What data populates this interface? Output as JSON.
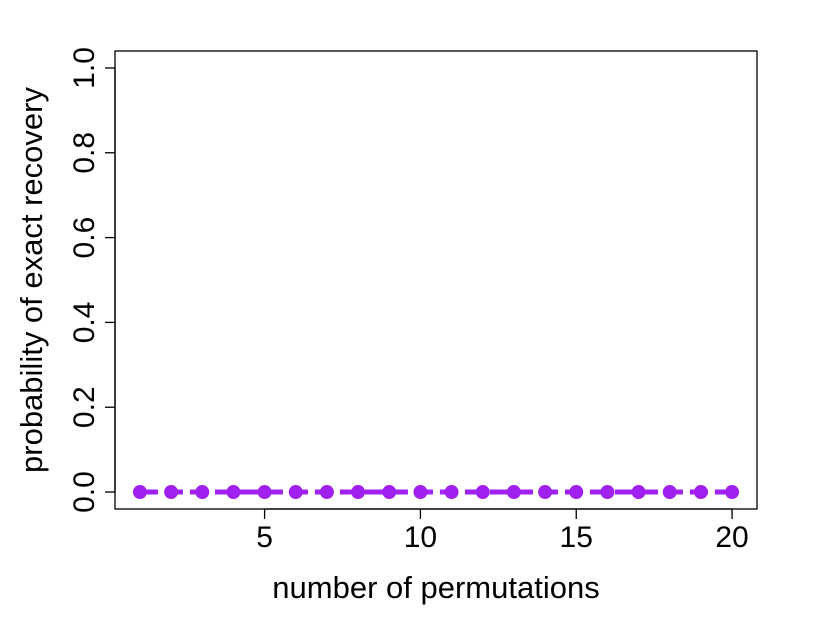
{
  "chart_data": {
    "type": "line",
    "xlabel": "number of permutations",
    "ylabel": "probability of exact recovery",
    "xlim": [
      0.2,
      20.8
    ],
    "ylim": [
      -0.04,
      1.04
    ],
    "x_ticks": [
      5,
      10,
      15,
      20
    ],
    "y_ticks": [
      0.0,
      0.2,
      0.4,
      0.6,
      0.8,
      1.0
    ],
    "x_tick_labels": [
      "5",
      "10",
      "15",
      "20"
    ],
    "y_tick_labels": [
      "0.0",
      "0.2",
      "0.4",
      "0.6",
      "0.8",
      "1.0"
    ],
    "grid": false,
    "series": [
      {
        "color": "#a020f0",
        "x": [
          1,
          2,
          3,
          4,
          5,
          6,
          7,
          8,
          9,
          10,
          11,
          12,
          13,
          14,
          15,
          16,
          17,
          18,
          19,
          20
        ],
        "y": [
          0,
          0,
          0,
          0,
          0,
          0,
          0,
          0,
          0,
          0,
          0,
          0,
          0,
          0,
          0,
          0,
          0,
          0,
          0,
          0
        ]
      }
    ]
  }
}
